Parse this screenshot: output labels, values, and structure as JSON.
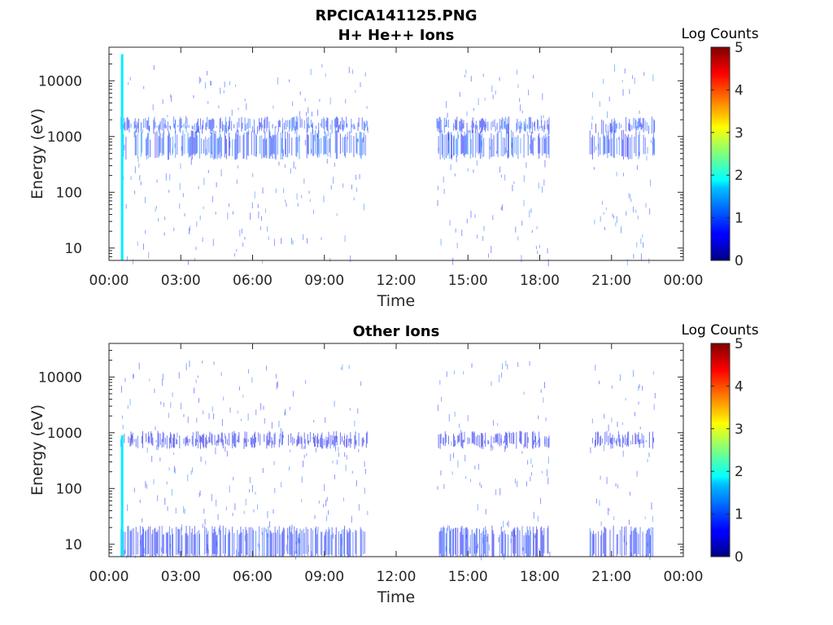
{
  "figure_title": "RPCICA141125.PNG",
  "chart_data": [
    {
      "type": "heatmap",
      "title": "H+ He++ Ions",
      "xlabel": "Time",
      "ylabel": "Energy (eV)",
      "x_ticks": [
        "00:00",
        "03:00",
        "06:00",
        "09:00",
        "12:00",
        "15:00",
        "18:00",
        "21:00",
        "00:00"
      ],
      "x_range_hours": [
        0,
        24
      ],
      "y_scale": "log",
      "y_ticks": [
        "10",
        "100",
        "1000",
        "10000"
      ],
      "y_range": [
        6,
        40000
      ],
      "colorbar": {
        "label": "Log Counts",
        "range": [
          0,
          5
        ],
        "ticks": [
          "0",
          "1",
          "2",
          "3",
          "4",
          "5"
        ],
        "colormap": "jet"
      },
      "data_segments_hours": [
        [
          0.5,
          10.8
        ],
        [
          13.7,
          18.4
        ],
        [
          20.1,
          22.8
        ]
      ],
      "bands": [
        {
          "name": "main",
          "energy_range_eV": [
            450,
            1100
          ],
          "log_counts": 1.2
        },
        {
          "name": "upper",
          "energy_range_eV": [
            1300,
            1900
          ],
          "log_counts": 1.1
        }
      ],
      "burst": {
        "time_hours": 0.55,
        "energy_range_eV": [
          6,
          30000
        ],
        "log_counts": 1.8
      }
    },
    {
      "type": "heatmap",
      "title": "Other Ions",
      "xlabel": "Time",
      "ylabel": "Energy (eV)",
      "x_ticks": [
        "00:00",
        "03:00",
        "06:00",
        "09:00",
        "12:00",
        "15:00",
        "18:00",
        "21:00",
        "00:00"
      ],
      "x_range_hours": [
        0,
        24
      ],
      "y_scale": "log",
      "y_ticks": [
        "10",
        "100",
        "1000",
        "10000"
      ],
      "y_range": [
        6,
        40000
      ],
      "colorbar": {
        "label": "Log Counts",
        "range": [
          0,
          5
        ],
        "ticks": [
          "0",
          "1",
          "2",
          "3",
          "4",
          "5"
        ],
        "colormap": "jet"
      },
      "data_segments_hours": [
        [
          0.5,
          10.8
        ],
        [
          13.7,
          18.4
        ],
        [
          20.1,
          22.8
        ]
      ],
      "bands": [
        {
          "name": "low",
          "energy_range_eV": [
            6,
            18
          ],
          "log_counts": 1.0
        },
        {
          "name": "upper",
          "energy_range_eV": [
            600,
            900
          ],
          "log_counts": 0.8
        }
      ],
      "burst": {
        "time_hours": 0.55,
        "energy_range_eV": [
          6,
          900
        ],
        "log_counts": 1.8
      }
    }
  ]
}
